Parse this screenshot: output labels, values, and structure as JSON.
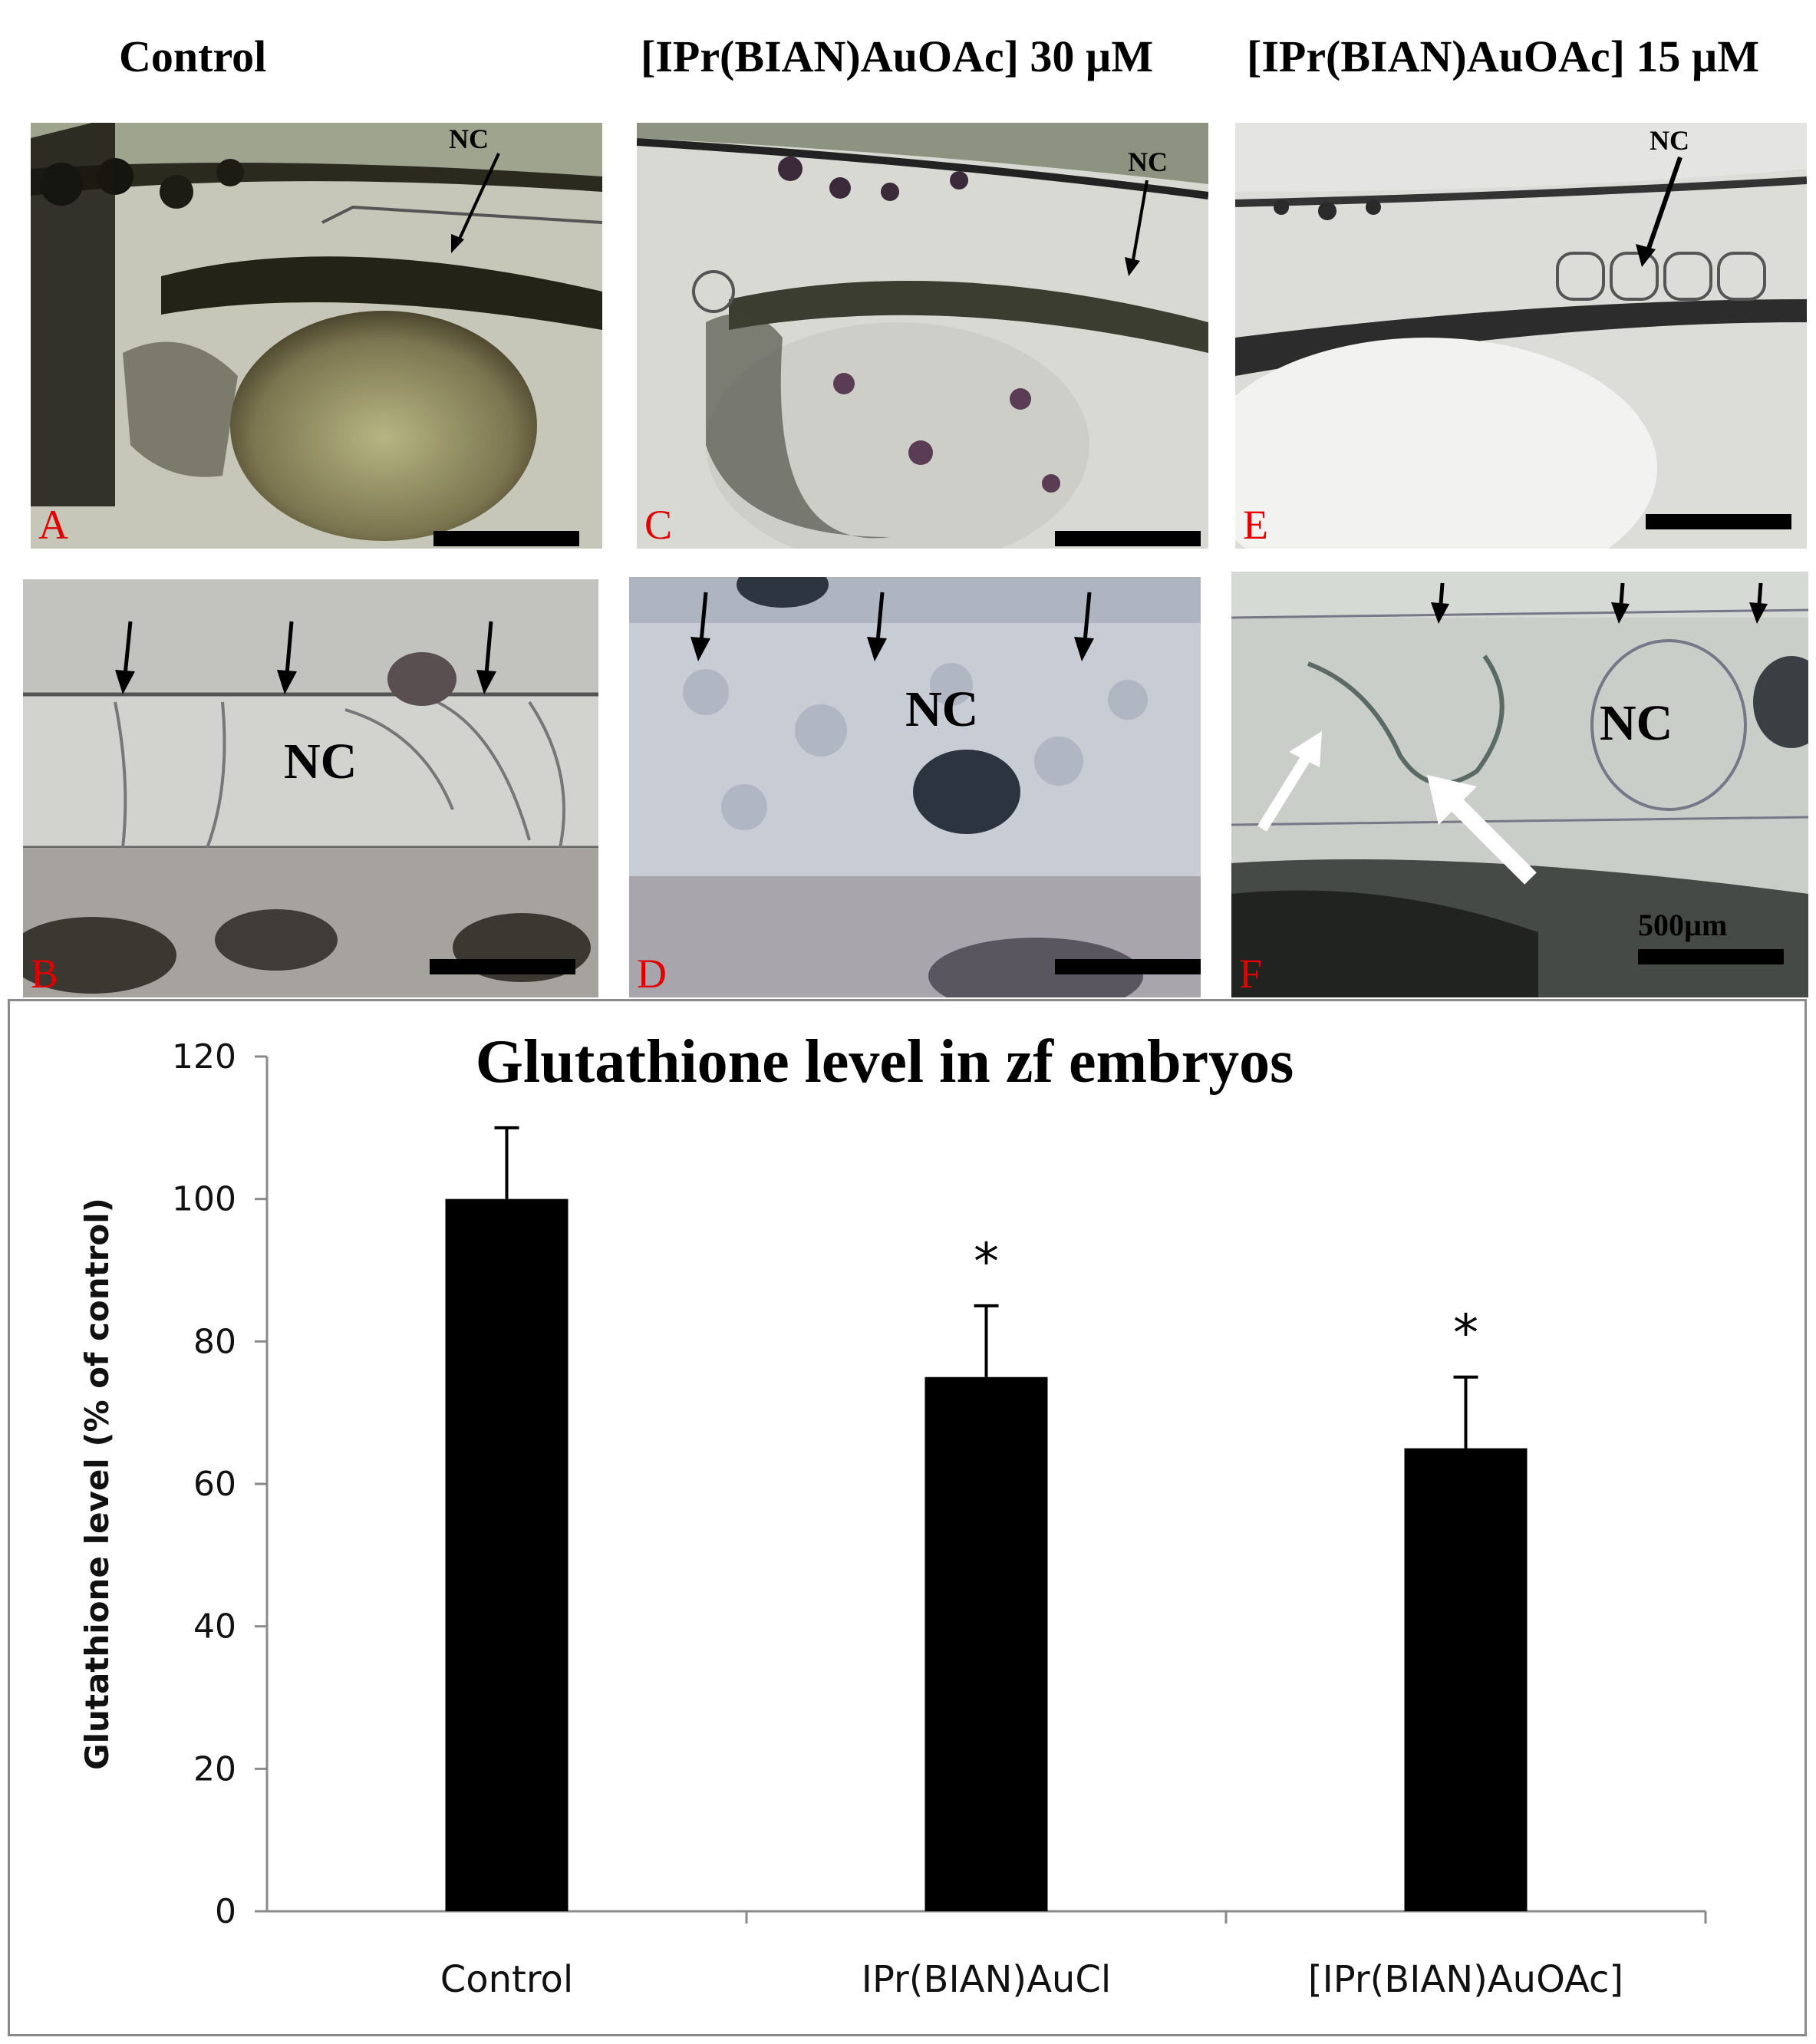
{
  "column_titles": {
    "left": "Control",
    "middle": "[IPr(BIAN)AuOAc] 30 µM",
    "right": "[IPr(BIAN)AuOAc] 15 µM"
  },
  "panels": {
    "A": {
      "label": "A",
      "annotation": "NC"
    },
    "B": {
      "label": "B",
      "annotation": "NC"
    },
    "C": {
      "label": "C",
      "annotation": "NC"
    },
    "D": {
      "label": "D",
      "annotation": "NC"
    },
    "E": {
      "label": "E",
      "annotation": "NC"
    },
    "F": {
      "label": "F",
      "annotation": "NC",
      "scale_text": "500µm"
    }
  },
  "colors": {
    "panel_label": "#e00000",
    "bar_fill": "#000000",
    "frame_border": "#8a8a8a"
  },
  "chart_data": {
    "type": "bar",
    "title": "Glutathione level in zf embryos",
    "ylabel": "Glutathione level (% of control)",
    "xlabel": "",
    "categories": [
      "Control",
      "IPr(BIAN)AuCl",
      "[IPr(BIAN)AuOAc]"
    ],
    "values": [
      100,
      75,
      65
    ],
    "error": [
      10,
      10,
      10
    ],
    "significance": [
      "",
      "*",
      "*"
    ],
    "ylim": [
      0,
      120
    ],
    "yticks": [
      "0",
      "20",
      "40",
      "60",
      "80",
      "100",
      "120"
    ],
    "grid": false,
    "legend": "none"
  }
}
